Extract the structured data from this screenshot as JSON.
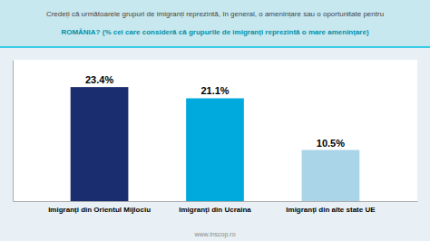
{
  "chart_data": {
    "type": "bar",
    "title": "Credeți că următoarele grupuri de imigranți reprezintă, în general, o amenințare sau o oportunitate pentru",
    "subtitle": "ROMÂNIA? (% cei care consideră că grupurile de imigranți reprezintă o mare amenințare)",
    "categories": [
      "Imigranți din Orientul Mijlociu",
      "Imigranți din Ucraina",
      "Imigranți din alte state UE"
    ],
    "values": [
      23.4,
      21.1,
      10.5
    ],
    "value_labels": [
      "23.4%",
      "21.1%",
      "10.5%"
    ],
    "colors": [
      "#1a2d6e",
      "#00aadd",
      "#aad4e8"
    ],
    "ylim": [
      0,
      29
    ],
    "data_labels": true,
    "tick_labels": "x",
    "grid": false,
    "annotations": [
      "www.inscop.ro"
    ]
  }
}
